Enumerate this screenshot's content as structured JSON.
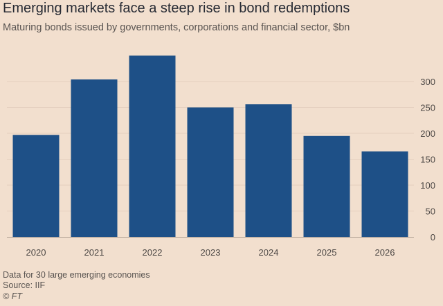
{
  "title": "Emerging markets face a steep rise in bond redemptions",
  "subtitle": "Maturing bonds issued by governments, corporations and financial sector, $bn",
  "footer": {
    "note": "Data for 30 large emerging economies",
    "source": "Source: IIF",
    "credit": "© FT"
  },
  "colors": {
    "background": "#f2dfce",
    "bar": "#1e5087",
    "grid": "#e4cfbf",
    "axis_text": "#4d4845"
  },
  "chart_data": {
    "type": "bar",
    "categories": [
      "2020",
      "2021",
      "2022",
      "2023",
      "2024",
      "2025",
      "2026"
    ],
    "values": [
      197,
      304,
      350,
      250,
      256,
      195,
      165
    ],
    "title": "Emerging markets face a steep rise in bond redemptions",
    "subtitle": "Maturing bonds issued by governments, corporations and financial sector, $bn",
    "xlabel": "",
    "ylabel": "",
    "ylim": [
      0,
      350
    ],
    "yticks": [
      0,
      50,
      100,
      150,
      200,
      250,
      300
    ],
    "y_axis_side": "right",
    "grid": true
  }
}
